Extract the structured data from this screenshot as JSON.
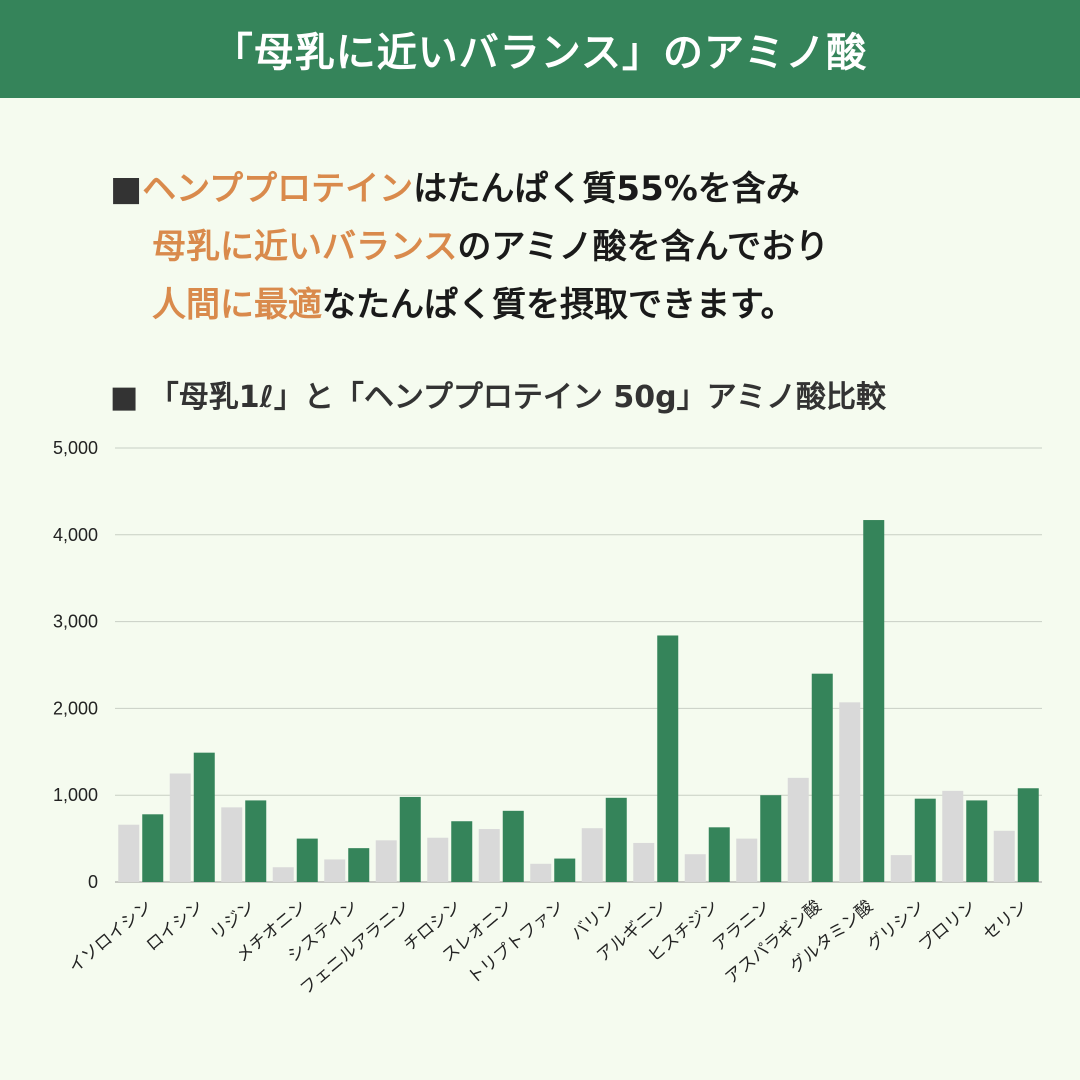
{
  "banner": {
    "title": "「母乳に近いバランス」のアミノ酸"
  },
  "intro": {
    "square": "■",
    "line1": {
      "highlight": "ヘンププロテイン",
      "rest": "はたんぱく質55%を含み"
    },
    "line2": {
      "highlight": "母乳に近いバランス",
      "rest": "のアミノ酸を含んでおり"
    },
    "line3": {
      "highlight": "人間に最適",
      "rest": "なたんぱく質を摂取できます。"
    }
  },
  "colors": {
    "banner": "#35845a",
    "hemp": "#35845a",
    "milk": "#d9d9d9",
    "highlight": "#d98a4c",
    "background": "#f5fbef"
  },
  "chart_data": {
    "type": "bar",
    "title": "■ 「母乳1ℓ」と「ヘンププロテイン 50g」アミノ酸比較",
    "ylim": [
      0,
      5000
    ],
    "yticks": [
      "0",
      "1,000",
      "2,000",
      "3,000",
      "4,000",
      "5,000"
    ],
    "ytick_values": [
      0,
      1000,
      2000,
      3000,
      4000,
      5000
    ],
    "grid": true,
    "categories": [
      "イソロイシン",
      "ロイシン",
      "リジン",
      "メチオニン",
      "システイン",
      "フェニルアラニン",
      "チロシン",
      "スレオニン",
      "トリプトファン",
      "バリン",
      "アルギニン",
      "ヒスチジン",
      "アラニン",
      "アスパラギン酸",
      "グルタミン酸",
      "グリシン",
      "プロリン",
      "セリン"
    ],
    "series": [
      {
        "values": [
          660,
          1250,
          860,
          170,
          260,
          480,
          510,
          610,
          210,
          620,
          450,
          320,
          500,
          1200,
          2070,
          310,
          1050,
          590
        ]
      },
      {
        "values": [
          780,
          1490,
          940,
          500,
          390,
          980,
          700,
          820,
          270,
          970,
          2840,
          630,
          1000,
          2400,
          4170,
          960,
          940,
          1080
        ]
      }
    ]
  }
}
